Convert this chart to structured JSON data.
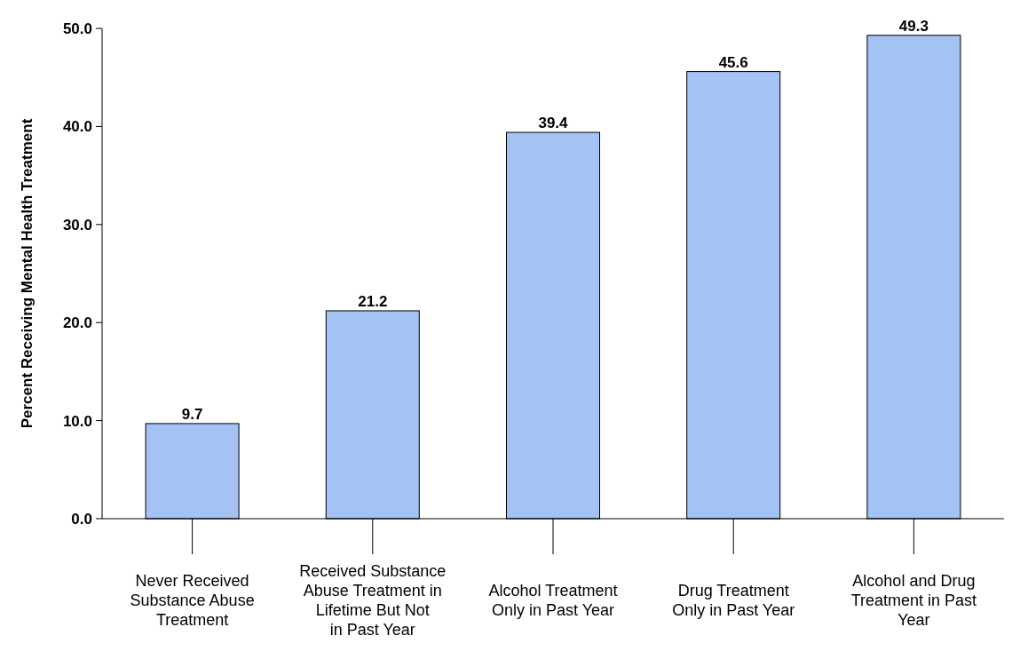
{
  "chart_data": {
    "type": "bar",
    "ylabel": "Percent Receiving Mental Health Treatment",
    "categories": [
      "Never Received Substance Abuse Treatment",
      "Received Substance Abuse Treatment in Lifetime But Not in Past Year",
      "Alcohol Treatment Only in Past Year",
      "Drug Treatment Only in Past Year",
      "Alcohol and Drug Treatment in Past Year"
    ],
    "values": [
      9.7,
      21.2,
      39.4,
      45.6,
      49.3
    ],
    "color": "#a4c2f4",
    "ylim": [
      0,
      50
    ],
    "yticks": [
      {
        "value": 0,
        "label": "0.0"
      },
      {
        "value": 10,
        "label": "10.0"
      },
      {
        "value": 20,
        "label": "20.0"
      },
      {
        "value": 30,
        "label": "30.0"
      },
      {
        "value": 40,
        "label": "40.0"
      },
      {
        "value": 50,
        "label": "50.0"
      }
    ],
    "data_labels": true,
    "grid": false
  }
}
